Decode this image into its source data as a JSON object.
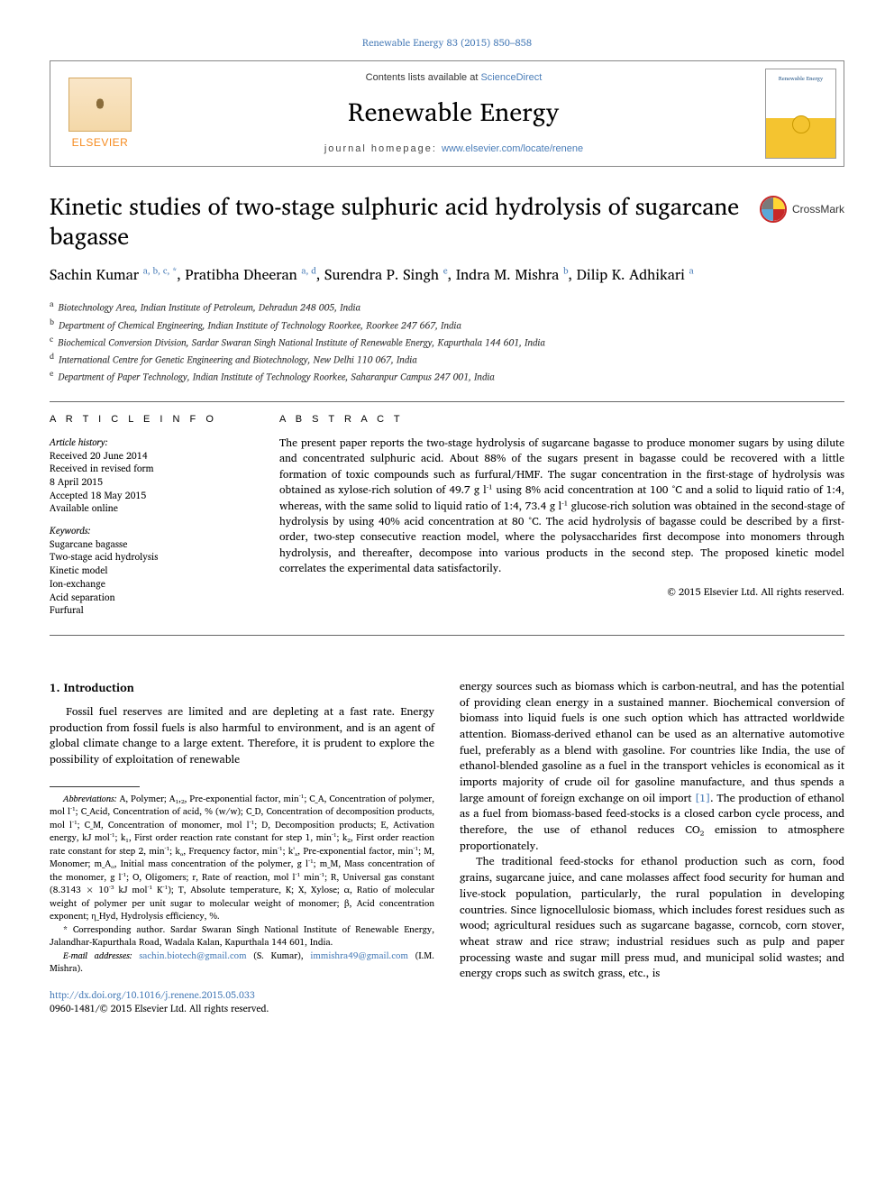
{
  "colors": {
    "link": "#4a7db8",
    "elsevier_orange": "#f68b1f",
    "rule": "#666666",
    "text": "#000000"
  },
  "top_reference": "Renewable Energy 83 (2015) 850–858",
  "header": {
    "contents_prefix": "Contents lists available at ",
    "contents_link": "ScienceDirect",
    "journal": "Renewable Energy",
    "homepage_prefix": "journal homepage: ",
    "homepage_url": "www.elsevier.com/locate/renene",
    "publisher_label": "ELSEVIER",
    "cover_text": "Renewable Energy"
  },
  "crossmark_label": "CrossMark",
  "title": "Kinetic studies of two-stage sulphuric acid hydrolysis of sugarcane bagasse",
  "authors": [
    {
      "name": "Sachin Kumar",
      "affs": "a, b, c, *"
    },
    {
      "name": "Pratibha Dheeran",
      "affs": "a, d"
    },
    {
      "name": "Surendra P. Singh",
      "affs": "e"
    },
    {
      "name": "Indra M. Mishra",
      "affs": "b"
    },
    {
      "name": "Dilip K. Adhikari",
      "affs": "a"
    }
  ],
  "affiliations": [
    {
      "key": "a",
      "text": "Biotechnology Area, Indian Institute of Petroleum, Dehradun 248 005, India"
    },
    {
      "key": "b",
      "text": "Department of Chemical Engineering, Indian Institute of Technology Roorkee, Roorkee 247 667, India"
    },
    {
      "key": "c",
      "text": "Biochemical Conversion Division, Sardar Swaran Singh National Institute of Renewable Energy, Kapurthala 144 601, India"
    },
    {
      "key": "d",
      "text": "International Centre for Genetic Engineering and Biotechnology, New Delhi 110 067, India"
    },
    {
      "key": "e",
      "text": "Department of Paper Technology, Indian Institute of Technology Roorkee, Saharanpur Campus 247 001, India"
    }
  ],
  "article_info": {
    "heading": "A R T I C L E   I N F O",
    "history_label": "Article history:",
    "history": [
      "Received 20 June 2014",
      "Received in revised form",
      "8 April 2015",
      "Accepted 18 May 2015",
      "Available online"
    ],
    "keywords_label": "Keywords:",
    "keywords": [
      "Sugarcane bagasse",
      "Two-stage acid hydrolysis",
      "Kinetic model",
      "Ion-exchange",
      "Acid separation",
      "Furfural"
    ]
  },
  "abstract": {
    "heading": "A B S T R A C T",
    "text": "The present paper reports the two-stage hydrolysis of sugarcane bagasse to produce monomer sugars by using dilute and concentrated sulphuric acid. About 88% of the sugars present in bagasse could be recovered with a little formation of toxic compounds such as furfural/HMF. The sugar concentration in the first-stage of hydrolysis was obtained as xylose-rich solution of 49.7 g l⁻¹ using 8% acid concentration at 100 °C and a solid to liquid ratio of 1:4, whereas, with the same solid to liquid ratio of 1:4, 73.4 g l⁻¹ glucose-rich solution was obtained in the second-stage of hydrolysis by using 40% acid concentration at 80 °C. The acid hydrolysis of bagasse could be described by a first-order, two-step consecutive reaction model, where the polysaccharides first decompose into monomers through hydrolysis, and thereafter, decompose into various products in the second step. The proposed kinetic model correlates the experimental data satisfactorily.",
    "copyright": "© 2015 Elsevier Ltd. All rights reserved."
  },
  "section1": {
    "heading": "1. Introduction",
    "para1": "Fossil fuel reserves are limited and are depleting at a fast rate. Energy production from fossil fuels is also harmful to environment, and is an agent of global climate change to a large extent. Therefore, it is prudent to explore the possibility of exploitation of renewable"
  },
  "footnotes": {
    "abbrev_label": "Abbreviations:",
    "abbrev_text": " A, Polymer; A₁,₂, Pre-exponential factor, min⁻¹; C_A, Concentration of polymer, mol l⁻¹; C_Acid, Concentration of acid, % (w/w); C_D, Concentration of decomposition products, mol l⁻¹; C_M, Concentration of monomer, mol l⁻¹; D, Decomposition products; E, Activation energy, kJ mol⁻¹; k₁, First order reaction rate constant for step 1, min⁻¹; k₂, First order reaction rate constant for step 2, min⁻¹; kₒ, Frequency factor, min⁻¹; k'ₓ, Pre-exponential factor, min⁻¹; M, Monomer; m_Aₒ, Initial mass concentration of the polymer, g l⁻¹; m_M, Mass concentration of the monomer, g l⁻¹; O, Oligomers; r, Rate of reaction, mol l⁻¹ min⁻¹; R, Universal gas constant (8.3143 × 10⁻³ kJ mol⁻¹ K⁻¹); T, Absolute temperature, K; X, Xylose; α, Ratio of molecular weight of polymer per unit sugar to molecular weight of monomer; β, Acid concentration exponent; η_Hyd, Hydrolysis efficiency, %.",
    "corr_label": "* Corresponding author.",
    "corr_text": " Sardar Swaran Singh National Institute of Renewable Energy, Jalandhar-Kapurthala Road, Wadala Kalan, Kapurthala 144 601, India.",
    "email_label": "E-mail addresses: ",
    "email1": "sachin.biotech@gmail.com",
    "email1_who": " (S. Kumar), ",
    "email2": "immishra49@gmail.com",
    "email2_who": " (I.M. Mishra)."
  },
  "doi": {
    "url": "http://dx.doi.org/10.1016/j.renene.2015.05.033",
    "issn_line": "0960-1481/© 2015 Elsevier Ltd. All rights reserved."
  },
  "col2": {
    "para1_a": "energy sources such as biomass which is carbon-neutral, and has the potential of providing clean energy in a sustained manner. Biochemical conversion of biomass into liquid fuels is one such option which has attracted worldwide attention. Biomass-derived ethanol can be used as an alternative automotive fuel, preferably as a blend with gasoline. For countries like India, the use of ethanol-blended gasoline as a fuel in the transport vehicles is economical as it imports majority of crude oil for gasoline manufacture, and thus spends a large amount of foreign exchange on oil import ",
    "cite1": "[1]",
    "para1_b": ". The production of ethanol as a fuel from biomass-based feed-stocks is a closed carbon cycle process, and therefore, the use of ethanol reduces CO₂ emission to atmosphere proportionately.",
    "para2": "The traditional feed-stocks for ethanol production such as corn, food grains, sugarcane juice, and cane molasses affect food security for human and live-stock population, particularly, the rural population in developing countries. Since lignocellulosic biomass, which includes forest residues such as wood; agricultural residues such as sugarcane bagasse, corncob, corn stover, wheat straw and rice straw; industrial residues such as pulp and paper processing waste and sugar mill press mud, and municipal solid wastes; and energy crops such as switch grass, etc., is"
  }
}
